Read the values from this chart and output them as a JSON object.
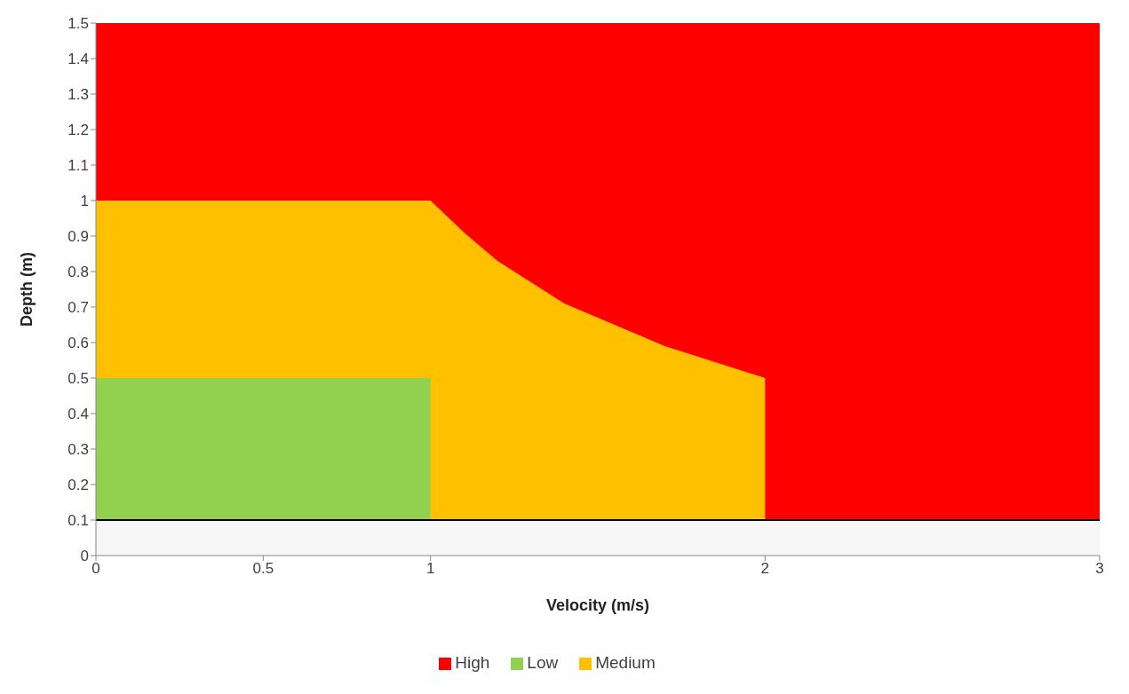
{
  "chart_data": {
    "type": "area",
    "xlabel": "Velocity (m/s)",
    "ylabel": "Depth (m)",
    "xlim": [
      0,
      3
    ],
    "xticks": [
      0,
      0.5,
      1,
      2,
      3
    ],
    "ylim": [
      0,
      1.5
    ],
    "yticks": [
      0,
      0.1,
      0.2,
      0.3,
      0.4,
      0.5,
      0.6,
      0.7,
      0.8,
      0.9,
      1,
      1.1,
      1.2,
      1.3,
      1.4,
      1.5
    ],
    "grid": false,
    "legend": "bottom",
    "stacked": true,
    "ref_lines": [
      {
        "axis": "y",
        "value": 0.1,
        "color": "#000000"
      }
    ],
    "x": [
      0,
      1,
      1,
      1.1,
      1.2,
      1.3,
      1.4,
      1.5,
      1.6,
      1.7,
      1.8,
      1.9,
      2,
      2,
      3
    ],
    "series": [
      {
        "color": "#f7f7f7",
        "values": [
          0.1,
          0.1,
          0.1,
          0.1,
          0.1,
          0.1,
          0.1,
          0.1,
          0.1,
          0.1,
          0.1,
          0.1,
          0.1,
          0.1,
          0.1
        ]
      },
      {
        "name": "Low",
        "color": "#92d050",
        "values": [
          0.4,
          0.4,
          0,
          0,
          0,
          0,
          0,
          0,
          0,
          0,
          0,
          0,
          0,
          0,
          0
        ]
      },
      {
        "name": "Medium",
        "color": "#ffc000",
        "values": [
          0.5,
          0.5,
          0.9,
          0.81,
          0.73,
          0.67,
          0.61,
          0.57,
          0.53,
          0.49,
          0.46,
          0.43,
          0.4,
          0,
          0
        ]
      },
      {
        "name": "High",
        "color": "#ff0000",
        "values": [
          0.5,
          0.5,
          0.5,
          0.59,
          0.67,
          0.73,
          0.79,
          0.83,
          0.87,
          0.91,
          0.94,
          0.97,
          1,
          1.4,
          1.4
        ]
      }
    ]
  }
}
